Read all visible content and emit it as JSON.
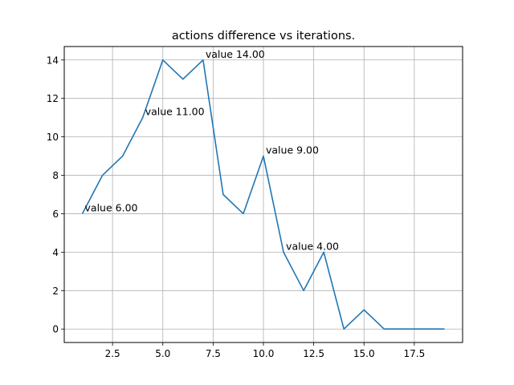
{
  "chart_data": {
    "type": "line",
    "title": "actions difference vs iterations.",
    "xlabel": "",
    "ylabel": "",
    "grid": true,
    "xlim": [
      0.1,
      19.9
    ],
    "ylim": [
      -0.7,
      14.7
    ],
    "x_ticks": [
      2.5,
      5.0,
      7.5,
      10.0,
      12.5,
      15.0,
      17.5
    ],
    "x_tick_labels": [
      "2.5",
      "5.0",
      "7.5",
      "10.0",
      "12.5",
      "15.0",
      "17.5"
    ],
    "y_ticks": [
      0,
      2,
      4,
      6,
      8,
      10,
      12,
      14
    ],
    "y_tick_labels": [
      "0",
      "2",
      "4",
      "6",
      "8",
      "10",
      "12",
      "14"
    ],
    "series": [
      {
        "color": "#1f77b4",
        "x": [
          1,
          2,
          3,
          4,
          5,
          6,
          7,
          8,
          9,
          10,
          11,
          12,
          13,
          14,
          15,
          16,
          17,
          18,
          19
        ],
        "y": [
          6,
          8,
          9,
          11,
          14,
          13,
          14,
          7,
          6,
          9,
          4,
          2,
          4,
          0,
          1,
          0,
          0,
          0,
          0
        ]
      }
    ],
    "annotations": [
      {
        "x": 1,
        "y": 6,
        "text": "value 6.00"
      },
      {
        "x": 4,
        "y": 11,
        "text": "value 11.00"
      },
      {
        "x": 7,
        "y": 14,
        "text": "value 14.00"
      },
      {
        "x": 10,
        "y": 9,
        "text": "value 9.00"
      },
      {
        "x": 11,
        "y": 4,
        "text": "value 4.00"
      }
    ]
  }
}
